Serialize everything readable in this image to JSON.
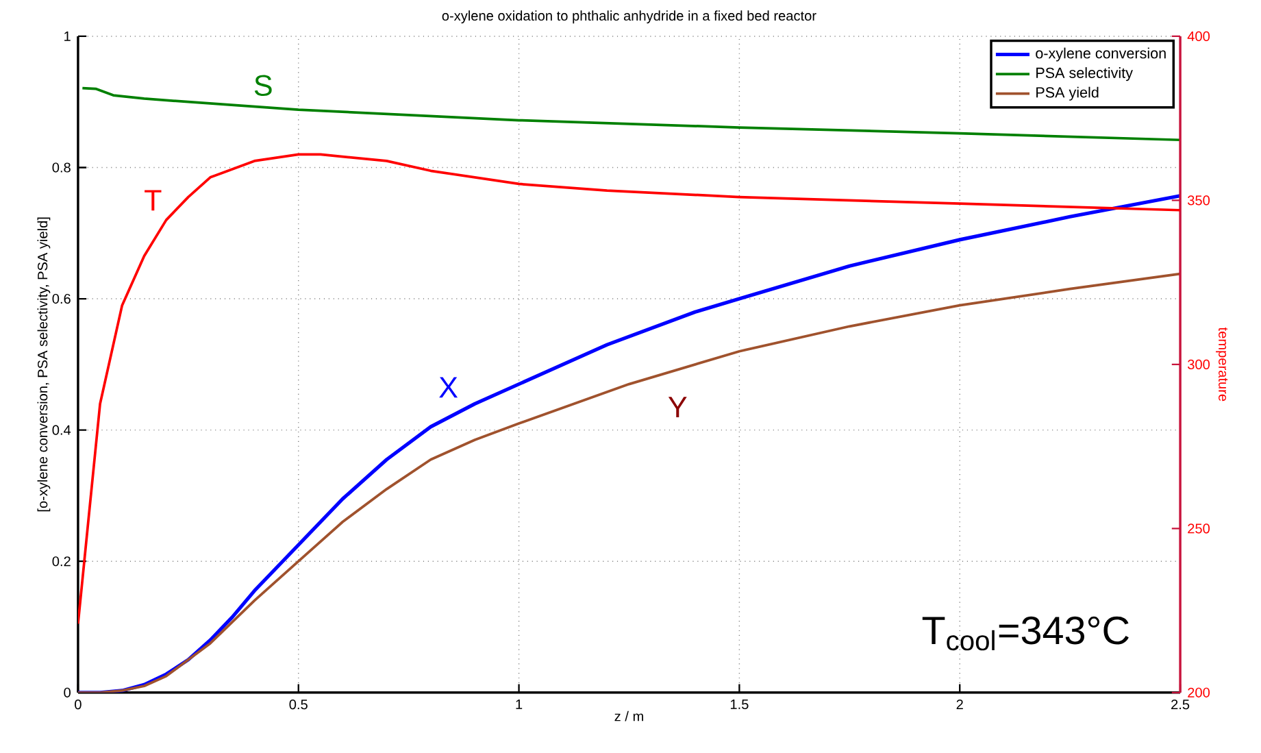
{
  "chart_data": {
    "type": "line",
    "title": "o-xylene oxidation to phthalic anhydride in a fixed bed reactor",
    "xlabel": "z / m",
    "ylabel": "[o-xylene conversion, PSA selectivity, PSA yield]",
    "y2label": "temperature",
    "series": [
      {
        "name": "o-xylene conversion",
        "color": "#0000ff",
        "x": [
          0,
          0.05,
          0.1,
          0.15,
          0.2,
          0.25,
          0.3,
          0.35,
          0.4,
          0.45,
          0.5,
          0.55,
          0.6,
          0.7,
          0.8,
          0.9,
          1.0,
          1.1,
          1.2,
          1.3,
          1.4,
          1.5,
          1.75,
          2.0,
          2.25,
          2.5
        ],
        "values": [
          0,
          0,
          0.003,
          0.012,
          0.028,
          0.05,
          0.08,
          0.115,
          0.155,
          0.19,
          0.225,
          0.26,
          0.295,
          0.355,
          0.405,
          0.44,
          0.47,
          0.5,
          0.53,
          0.555,
          0.58,
          0.6,
          0.65,
          0.69,
          0.725,
          0.757
        ]
      },
      {
        "name": "PSA selectivity",
        "color": "#008000",
        "x": [
          0.01,
          0.04,
          0.08,
          0.15,
          0.25,
          0.5,
          1.0,
          1.5,
          2.0,
          2.5
        ],
        "values": [
          0.921,
          0.92,
          0.91,
          0.905,
          0.9,
          0.888,
          0.872,
          0.861,
          0.852,
          0.842
        ]
      },
      {
        "name": "PSA yield",
        "color": "#a0522d",
        "x": [
          0,
          0.05,
          0.1,
          0.15,
          0.2,
          0.3,
          0.4,
          0.5,
          0.6,
          0.7,
          0.8,
          0.9,
          1.0,
          1.25,
          1.5,
          1.75,
          2.0,
          2.25,
          2.5
        ],
        "values": [
          0,
          0,
          0.003,
          0.01,
          0.025,
          0.075,
          0.14,
          0.2,
          0.26,
          0.31,
          0.355,
          0.385,
          0.41,
          0.47,
          0.52,
          0.558,
          0.59,
          0.615,
          0.638
        ]
      },
      {
        "axis": "y2",
        "color": "#ff0000",
        "x": [
          0,
          0.05,
          0.1,
          0.15,
          0.2,
          0.25,
          0.3,
          0.4,
          0.5,
          0.55,
          0.7,
          0.8,
          1.0,
          1.2,
          1.5,
          2.0,
          2.5
        ],
        "values": [
          221,
          288,
          318,
          333,
          344,
          351,
          357,
          362,
          364,
          364,
          362,
          359,
          355,
          353,
          351,
          349,
          347
        ]
      }
    ],
    "xlim": [
      0,
      2.5
    ],
    "xticks": [
      0,
      0.5,
      1,
      1.5,
      2,
      2.5
    ],
    "ylim": [
      0,
      1
    ],
    "yticks": [
      0,
      0.2,
      0.4,
      0.6,
      0.8,
      1
    ],
    "y2lim": [
      200,
      400
    ],
    "y2ticks": [
      200,
      250,
      300,
      350,
      400
    ],
    "grid": true,
    "legend": "top right",
    "marker": "none",
    "line_style": "solid",
    "annotations": [
      "S",
      "T",
      "X",
      "Y",
      "T$_{cool}$=343°C"
    ]
  }
}
